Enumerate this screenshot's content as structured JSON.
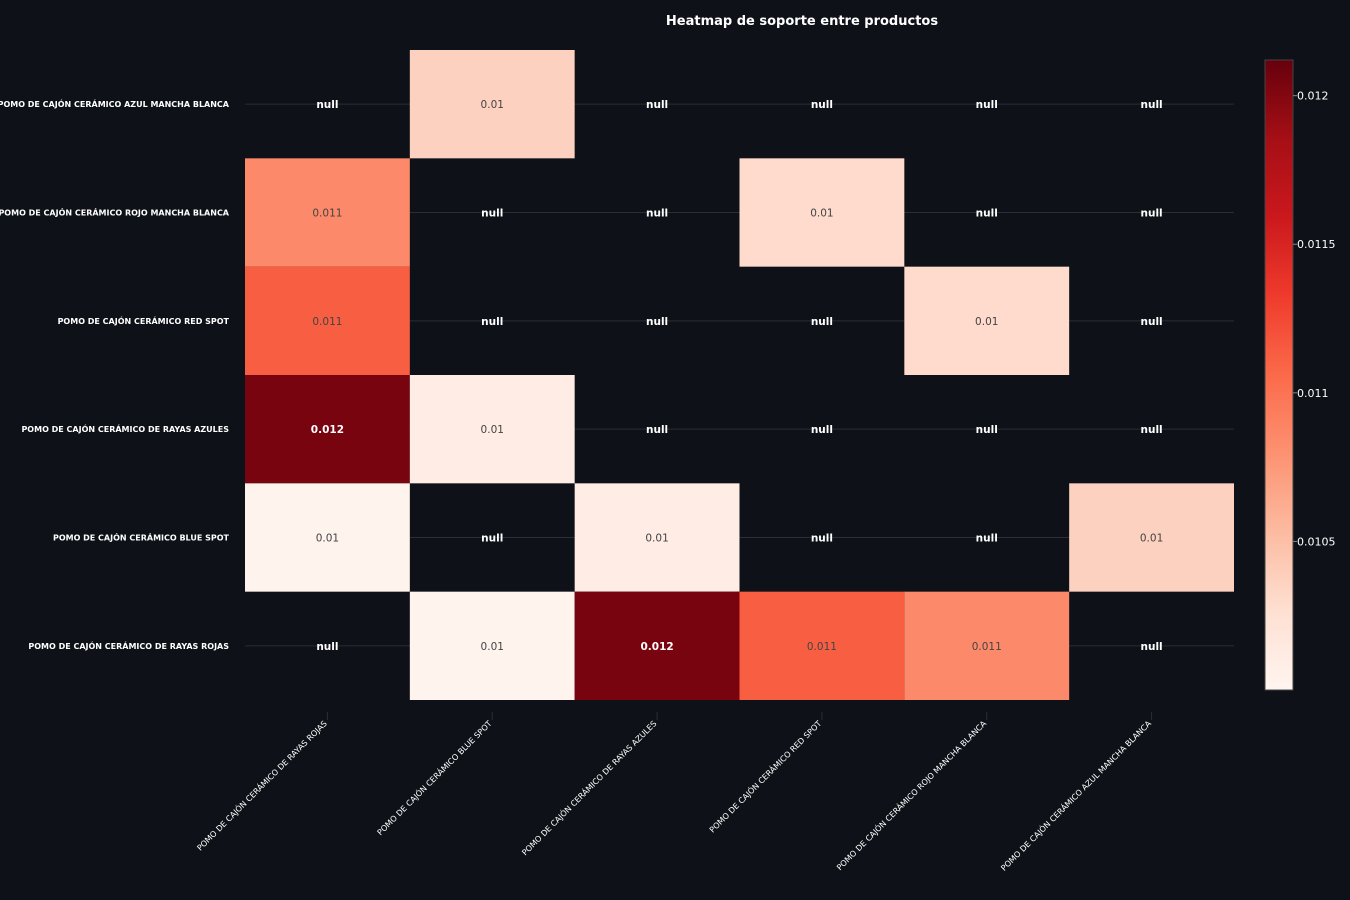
{
  "chart_data": {
    "type": "heatmap",
    "title": "Heatmap de soporte entre productos",
    "x_categories": [
      "POMO DE CAJÓN CERÁMICO DE RAYAS ROJAS",
      "POMO DE CAJÓN CERÁMICO BLUE SPOT",
      "POMO DE CAJÓN CERÁMICO DE RAYAS AZULES",
      "POMO DE CAJÓN CERÁMICO RED SPOT",
      "POMO DE CAJÓN CERÁMICO ROJO MANCHA BLANCA",
      "POMO DE CAJÓN CERÁMICO AZUL MANCHA BLANCA"
    ],
    "y_categories": [
      "POMO DE CAJÓN CERÁMICO AZUL MANCHA BLANCA",
      "POMO DE CAJÓN CERÁMICO ROJO MANCHA BLANCA",
      "POMO DE CAJÓN CERÁMICO RED SPOT",
      "POMO DE CAJÓN CERÁMICO DE RAYAS AZULES",
      "POMO DE CAJÓN CERÁMICO BLUE SPOT",
      "POMO DE CAJÓN CERÁMICO DE RAYAS ROJAS"
    ],
    "values": [
      [
        null,
        0.01037,
        null,
        null,
        null,
        null
      ],
      [
        0.01085,
        null,
        null,
        0.0103,
        null,
        null
      ],
      [
        0.01113,
        null,
        null,
        null,
        0.0103,
        null
      ],
      [
        0.01205,
        0.0101,
        null,
        null,
        null,
        null
      ],
      [
        0.01002,
        null,
        0.0101,
        null,
        null,
        0.01037
      ],
      [
        null,
        0.01002,
        0.01205,
        0.01113,
        0.01085,
        null
      ]
    ],
    "cell_labels": [
      [
        "null",
        "0.01",
        "null",
        "null",
        "null",
        "null"
      ],
      [
        "0.011",
        "null",
        "null",
        "0.01",
        "null",
        "null"
      ],
      [
        "0.011",
        "null",
        "null",
        "null",
        "0.01",
        "null"
      ],
      [
        "0.012",
        "0.01",
        "null",
        "null",
        "null",
        "null"
      ],
      [
        "0.01",
        "null",
        "0.01",
        "null",
        "null",
        "0.01"
      ],
      [
        "null",
        "0.01",
        "0.012",
        "0.011",
        "0.011",
        "null"
      ]
    ],
    "zmin": 0.01,
    "zmax": 0.01212,
    "colorscale": "Reds",
    "colorbar_ticks": [
      {
        "value": 0.0105,
        "label": "0.0105"
      },
      {
        "value": 0.011,
        "label": "0.011"
      },
      {
        "value": 0.0115,
        "label": "0.0115"
      },
      {
        "value": 0.012,
        "label": "0.012"
      }
    ],
    "colors": {
      "background": "#0e1117",
      "gridline": "#2a2e37",
      "text": "#ffffff",
      "null_text": "#ffffff",
      "scale": [
        "#fff5f0",
        "#fee0d2",
        "#fcbba1",
        "#fc9272",
        "#fb6a4a",
        "#ef3b2c",
        "#cb181d",
        "#a50f15",
        "#67000d"
      ]
    }
  }
}
